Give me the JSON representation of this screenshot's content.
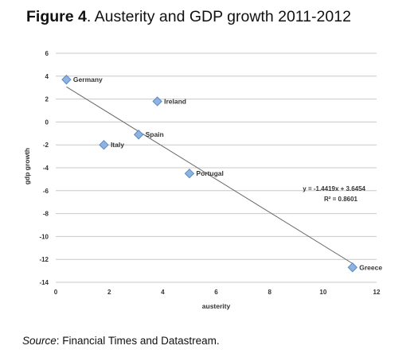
{
  "header": {
    "figure_label": "Figure 4",
    "title": ". Austerity and GDP growth 2011-2012"
  },
  "footer": {
    "source_label": "Source",
    "source_text": ": Financial Times and Datastream."
  },
  "colors": {
    "marker_fill": "#8fb3e0",
    "marker_stroke": "#5b8ac4",
    "trendline": "#666666",
    "gridline": "#c8c8c8"
  },
  "chart_data": {
    "type": "scatter",
    "xlabel": "austerity",
    "ylabel": "gdp growth",
    "xlim": [
      0,
      12
    ],
    "ylim": [
      -14,
      6
    ],
    "xticks": [
      0,
      2,
      4,
      6,
      8,
      10,
      12
    ],
    "yticks": [
      6,
      4,
      2,
      0,
      -2,
      -4,
      -6,
      -8,
      -10,
      -12,
      -14
    ],
    "grid": true,
    "points": [
      {
        "label": "Germany",
        "x": 0.4,
        "y": 3.7
      },
      {
        "label": "Ireland",
        "x": 3.8,
        "y": 1.8
      },
      {
        "label": "Spain",
        "x": 3.1,
        "y": -1.1
      },
      {
        "label": "Italy",
        "x": 1.8,
        "y": -2.0
      },
      {
        "label": "Portugal",
        "x": 5.0,
        "y": -4.5
      },
      {
        "label": "Greece",
        "x": 11.1,
        "y": -12.7
      }
    ],
    "trendline": {
      "slope": -1.4419,
      "intercept": 3.6454,
      "equation": "y = -1.4419x + 3.6454",
      "r_squared": "R² = 0.8601"
    }
  }
}
